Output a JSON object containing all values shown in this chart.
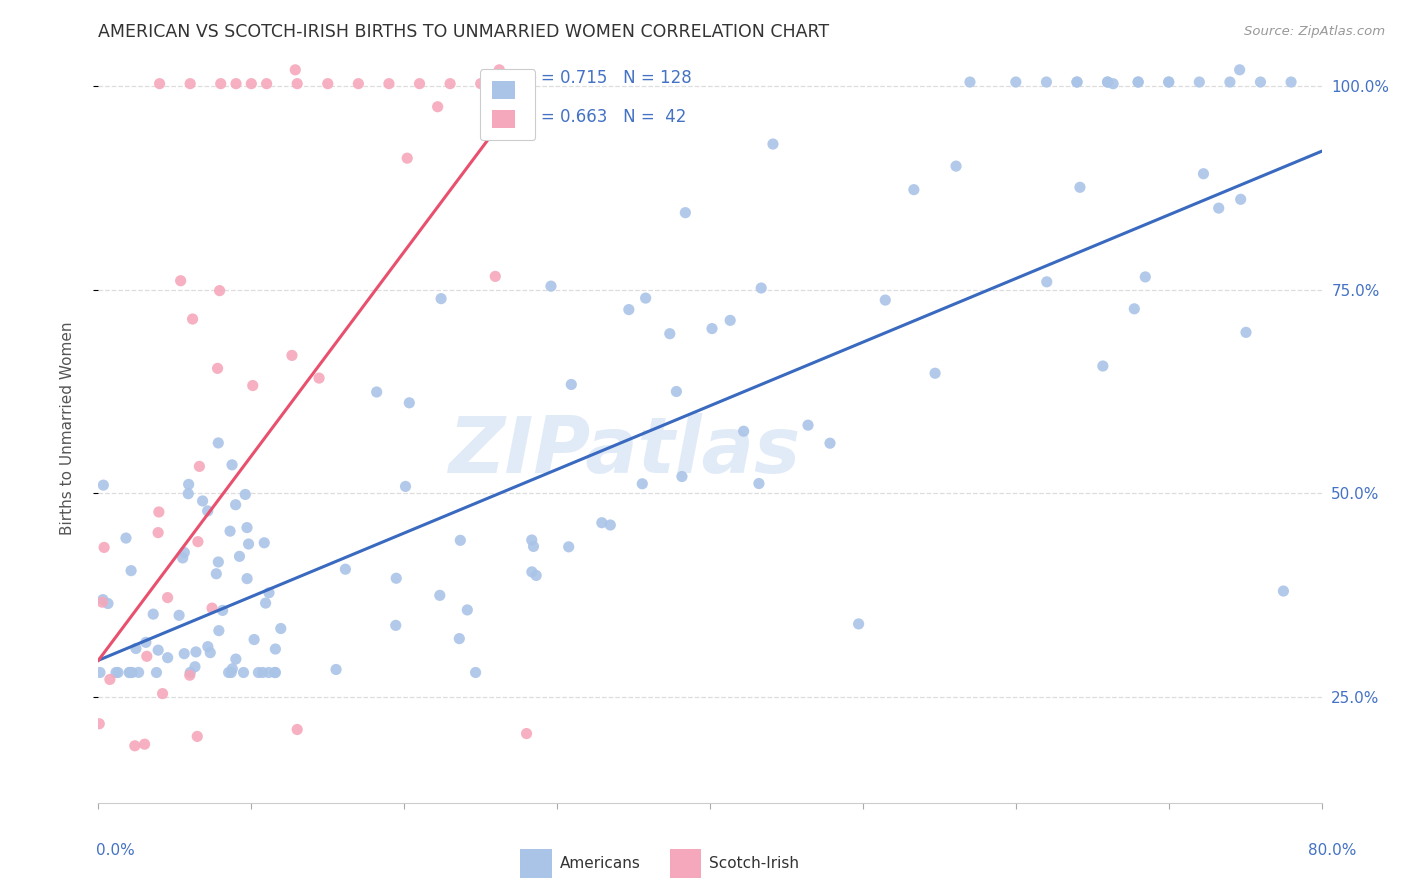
{
  "title": "AMERICAN VS SCOTCH-IRISH BIRTHS TO UNMARRIED WOMEN CORRELATION CHART",
  "source": "Source: ZipAtlas.com",
  "ylabel": "Births to Unmarried Women",
  "yticks_right": [
    "25.0%",
    "50.0%",
    "75.0%",
    "100.0%"
  ],
  "ytick_vals": [
    0.25,
    0.5,
    0.75,
    1.0
  ],
  "xmin": 0.0,
  "xmax": 0.8,
  "ymin": 0.12,
  "ymax": 1.04,
  "blue_R": 0.715,
  "blue_N": 128,
  "pink_R": 0.663,
  "pink_N": 42,
  "blue_color": "#aac4e8",
  "pink_color": "#f5a8bb",
  "blue_line_color": "#3a6abf",
  "pink_line_color": "#e8506e",
  "legend_label_blue": "Americans",
  "legend_label_pink": "Scotch-Irish",
  "watermark": "ZIPatlas",
  "background_color": "#ffffff",
  "grid_color": "#dddddd",
  "title_color": "#333333",
  "axis_label_color": "#4472c4",
  "stat_color": "#4472c4",
  "blue_line_x0": 0.0,
  "blue_line_x1": 0.8,
  "blue_line_y0": 0.295,
  "blue_line_y1": 0.92,
  "pink_line_x0": 0.0,
  "pink_line_x1": 0.285,
  "pink_line_y0": 0.295,
  "pink_line_y1": 1.01
}
